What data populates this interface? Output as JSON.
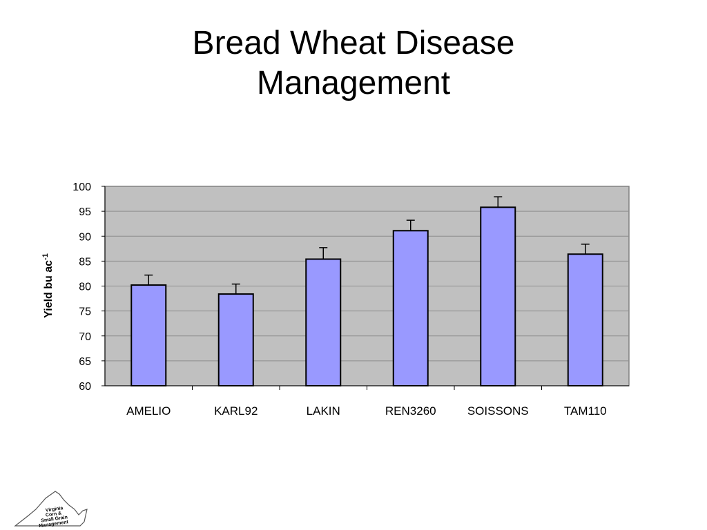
{
  "slide": {
    "title_line1": "Bread Wheat Disease",
    "title_line2": "Management"
  },
  "chart_data": {
    "type": "bar",
    "title": "Bread Wheat Disease Management",
    "xlabel": "",
    "ylabel": "Yield bu ac",
    "ylabel_superscript": "-1",
    "categories": [
      "AMELIO",
      "KARL92",
      "LAKIN",
      "REN3260",
      "SOISSONS",
      "TAM110"
    ],
    "values": [
      80.2,
      78.4,
      85.4,
      91.1,
      95.8,
      86.4
    ],
    "error_upper": [
      82.2,
      80.4,
      87.7,
      93.2,
      97.9,
      88.4
    ],
    "ylim": [
      60,
      100
    ],
    "yticks": [
      60,
      65,
      70,
      75,
      80,
      85,
      90,
      95,
      100
    ],
    "grid": true,
    "legend": "none",
    "colors": {
      "bar_fill": "#9999ff",
      "bar_stroke": "#000000",
      "plot_background": "#c0c0c0",
      "gridline": "#8c8c8c"
    }
  },
  "logo": {
    "line1": "Virginia",
    "line2": "Corn &",
    "line3": "Small Grain",
    "line4": "Management"
  }
}
